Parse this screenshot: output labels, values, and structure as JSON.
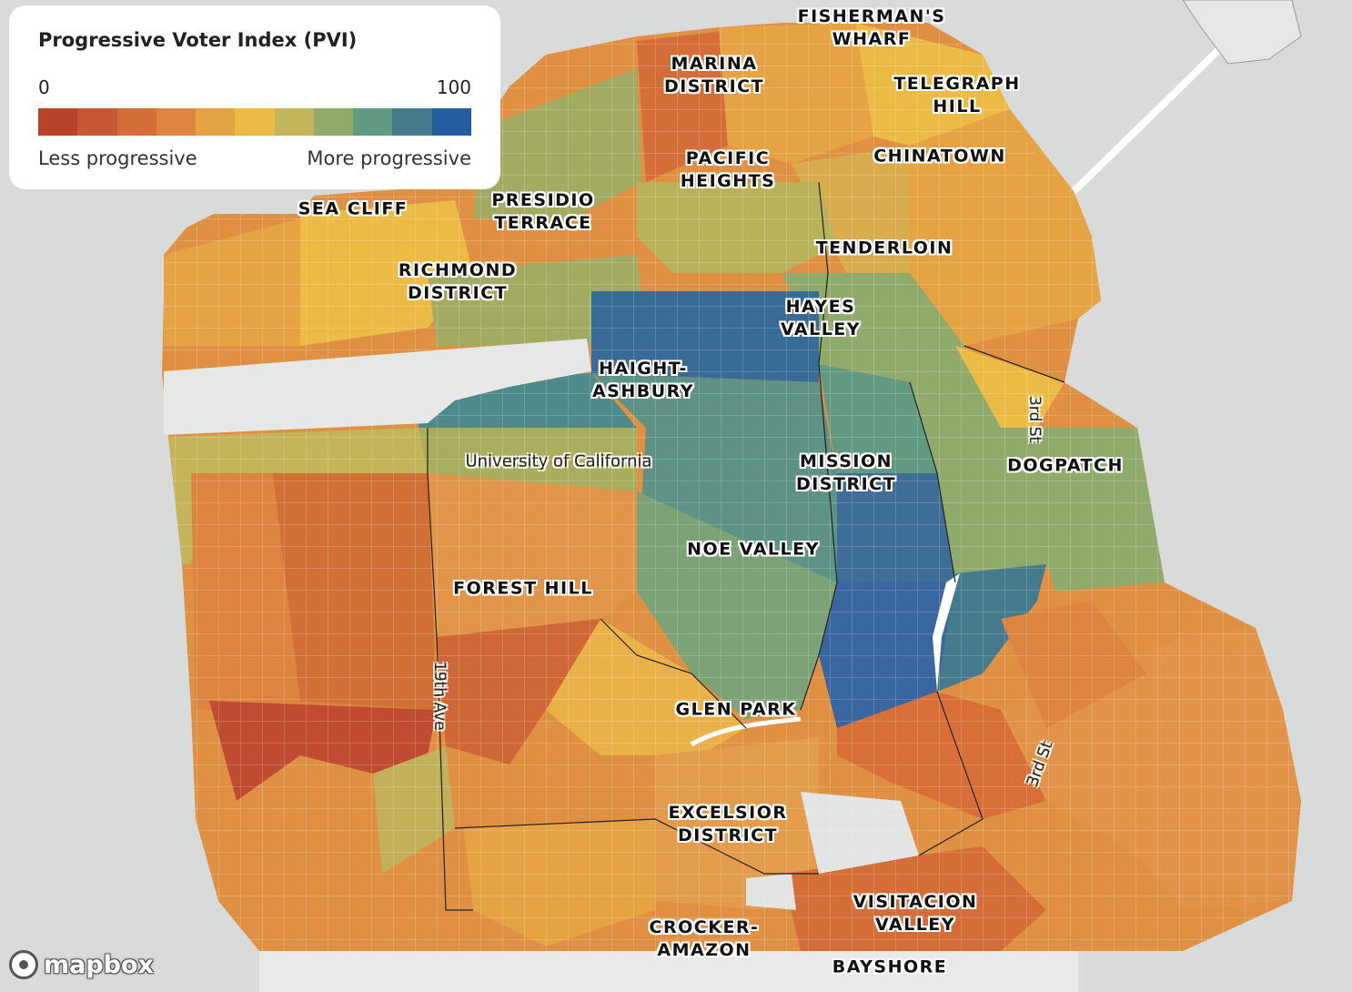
{
  "legend": {
    "title": "Progressive Voter Index (PVI)",
    "min_label": "0",
    "max_label": "100",
    "low_desc": "Less progressive",
    "high_desc": "More progressive",
    "colors": [
      "#b8432b",
      "#c85835",
      "#d46d38",
      "#dd8440",
      "#e6a344",
      "#ecbb45",
      "#c4b45a",
      "#90aa6c",
      "#619a80",
      "#457a8c",
      "#265da1"
    ]
  },
  "neighborhoods": [
    {
      "id": "fishermans-wharf",
      "label": "FISHERMAN'S\nWHARF"
    },
    {
      "id": "marina-district",
      "label": "MARINA\nDISTRICT"
    },
    {
      "id": "telegraph-hill",
      "label": "TELEGRAPH\nHILL"
    },
    {
      "id": "chinatown",
      "label": "CHINATOWN"
    },
    {
      "id": "pacific-heights",
      "label": "PACIFIC\nHEIGHTS"
    },
    {
      "id": "sea-cliff",
      "label": "SEA CLIFF"
    },
    {
      "id": "presidio-terrace",
      "label": "PRESIDIO\nTERRACE"
    },
    {
      "id": "tenderloin",
      "label": "TENDERLOIN"
    },
    {
      "id": "richmond-district",
      "label": "RICHMOND\nDISTRICT"
    },
    {
      "id": "hayes-valley",
      "label": "HAYES\nVALLEY"
    },
    {
      "id": "haight-ashbury",
      "label": "HAIGHT-\nASHBURY"
    },
    {
      "id": "mission-district",
      "label": "MISSION\nDISTRICT"
    },
    {
      "id": "dogpatch",
      "label": "DOGPATCH"
    },
    {
      "id": "noe-valley",
      "label": "NOE VALLEY"
    },
    {
      "id": "forest-hill",
      "label": "FOREST HILL"
    },
    {
      "id": "glen-park",
      "label": "GLEN PARK"
    },
    {
      "id": "excelsior-district",
      "label": "EXCELSIOR\nDISTRICT"
    },
    {
      "id": "visitacion-valley",
      "label": "VISITACION\nVALLEY"
    },
    {
      "id": "crocker-amazon",
      "label": "CROCKER-\nAMAZON"
    },
    {
      "id": "bayshore",
      "label": "BAYSHORE"
    }
  ],
  "places": [
    {
      "id": "university-of-california",
      "label": "University of California"
    }
  ],
  "streets": [
    {
      "id": "third-st-north",
      "label": "3rd St"
    },
    {
      "id": "third-st-south",
      "label": "3rd St"
    },
    {
      "id": "nineteenth-ave",
      "label": "19th Ave"
    }
  ],
  "attribution": {
    "logo_text": "mapbox"
  }
}
